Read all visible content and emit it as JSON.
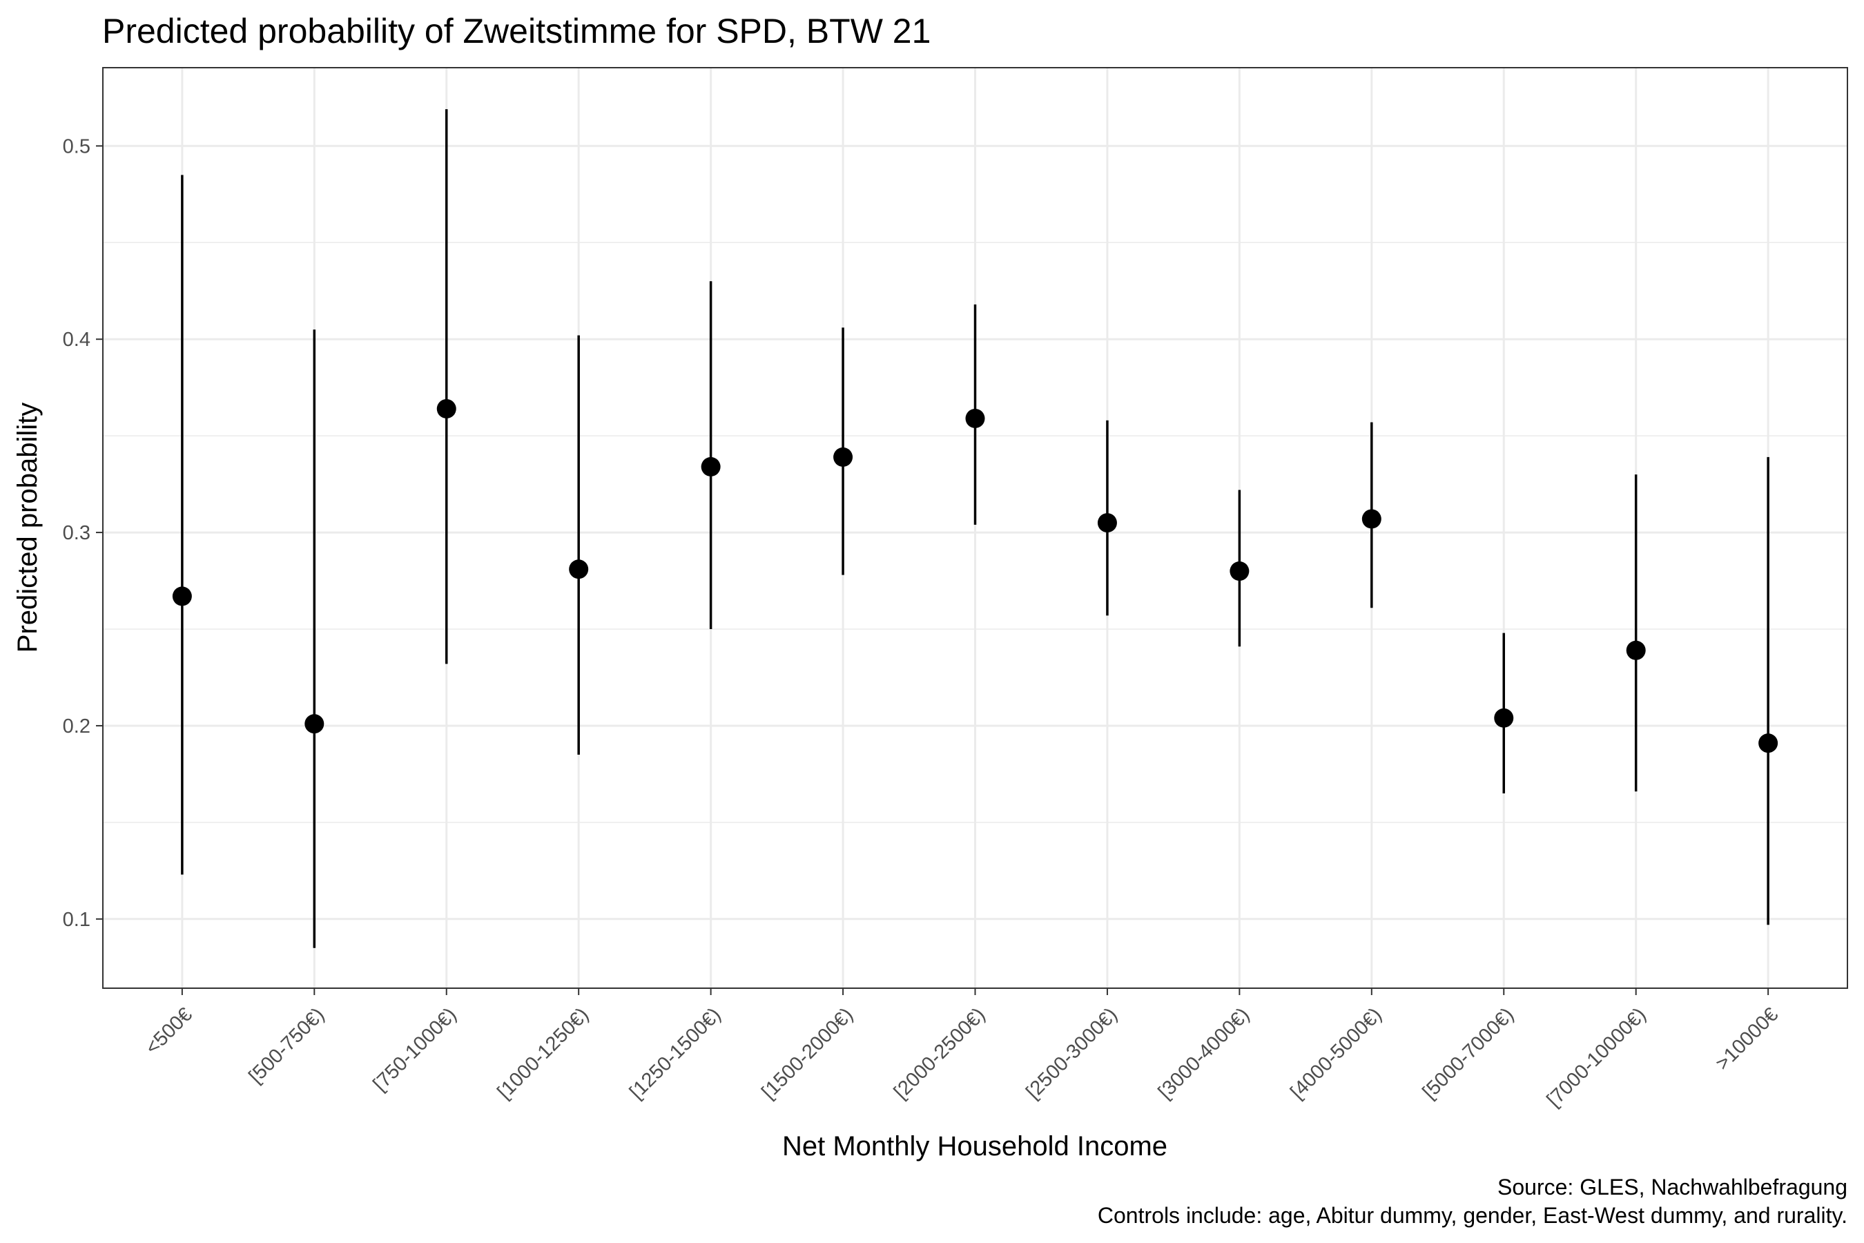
{
  "chart_data": {
    "type": "scatter",
    "title": "Predicted probability of Zweitstimme for SPD, BTW 21",
    "xlabel": "Net Monthly Household Income",
    "ylabel": "Predicted probability",
    "categories": [
      "<500€",
      "[500-750€)",
      "[750-1000€)",
      "[1000-1250€)",
      "[1250-1500€)",
      "[1500-2000€)",
      "[2000-2500€)",
      "[2500-3000€)",
      "[3000-4000€)",
      "[4000-5000€)",
      "[5000-7000€)",
      "[7000-10000€)",
      ">10000€"
    ],
    "values": [
      0.267,
      0.201,
      0.364,
      0.281,
      0.334,
      0.339,
      0.359,
      0.305,
      0.28,
      0.307,
      0.204,
      0.239,
      0.191
    ],
    "lower": [
      0.123,
      0.085,
      0.232,
      0.185,
      0.25,
      0.278,
      0.304,
      0.257,
      0.241,
      0.261,
      0.165,
      0.166,
      0.097
    ],
    "upper": [
      0.485,
      0.405,
      0.519,
      0.402,
      0.43,
      0.406,
      0.418,
      0.358,
      0.322,
      0.357,
      0.248,
      0.33,
      0.339
    ],
    "ylim": [
      0.0642,
      0.5405
    ],
    "yticks": [
      0.1,
      0.2,
      0.3,
      0.4,
      0.5
    ],
    "yticklabels": [
      "0.1",
      "0.2",
      "0.3",
      "0.4",
      "0.5"
    ],
    "grid": true,
    "caption": [
      "Source: GLES, Nachwahlbefragung",
      "Controls include: age, Abitur dummy, gender, East-West dummy, and rurality."
    ],
    "colors": {
      "marks": "#000000",
      "grid": "#ebebeb",
      "panel_border": "#333333",
      "tick_text": "#4d4d4d"
    }
  }
}
